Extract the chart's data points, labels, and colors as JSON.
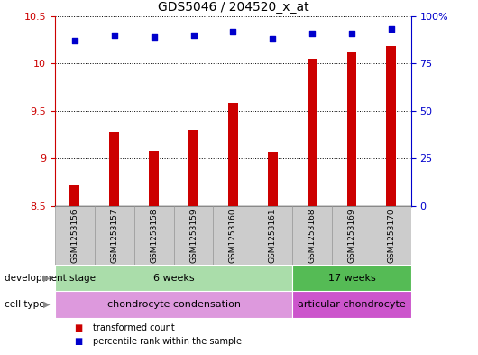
{
  "title": "GDS5046 / 204520_x_at",
  "samples": [
    "GSM1253156",
    "GSM1253157",
    "GSM1253158",
    "GSM1253159",
    "GSM1253160",
    "GSM1253161",
    "GSM1253168",
    "GSM1253169",
    "GSM1253170"
  ],
  "bar_values": [
    8.72,
    9.28,
    9.08,
    9.3,
    9.58,
    9.07,
    10.05,
    10.12,
    10.18
  ],
  "percentile_values": [
    87,
    90,
    89,
    90,
    92,
    88,
    91,
    91,
    93
  ],
  "ylim_left": [
    8.5,
    10.5
  ],
  "ylim_right": [
    0,
    100
  ],
  "yticks_left": [
    8.5,
    9.0,
    9.5,
    10.0,
    10.5
  ],
  "ytick_labels_left": [
    "8.5",
    "9",
    "9.5",
    "10",
    "10.5"
  ],
  "yticks_right": [
    0,
    25,
    50,
    75,
    100
  ],
  "ytick_labels_right": [
    "0",
    "25",
    "50",
    "75",
    "100%"
  ],
  "bar_color": "#cc0000",
  "dot_color": "#0000cc",
  "bar_width": 0.25,
  "development_stage_groups": [
    {
      "label": "6 weeks",
      "start": 0,
      "end": 5,
      "color": "#aaddaa"
    },
    {
      "label": "17 weeks",
      "start": 6,
      "end": 8,
      "color": "#55bb55"
    }
  ],
  "cell_type_groups": [
    {
      "label": "chondrocyte condensation",
      "start": 0,
      "end": 5,
      "color": "#dd99dd"
    },
    {
      "label": "articular chondrocyte",
      "start": 6,
      "end": 8,
      "color": "#cc55cc"
    }
  ],
  "legend_items": [
    {
      "label": "transformed count",
      "color": "#cc0000"
    },
    {
      "label": "percentile rank within the sample",
      "color": "#0000cc"
    }
  ],
  "row_label_dev": "development stage",
  "row_label_cell": "cell type",
  "background_color": "#ffffff",
  "tick_color_left": "#cc0000",
  "tick_color_right": "#0000cc",
  "sample_box_color": "#cccccc",
  "sample_box_edge": "#999999"
}
